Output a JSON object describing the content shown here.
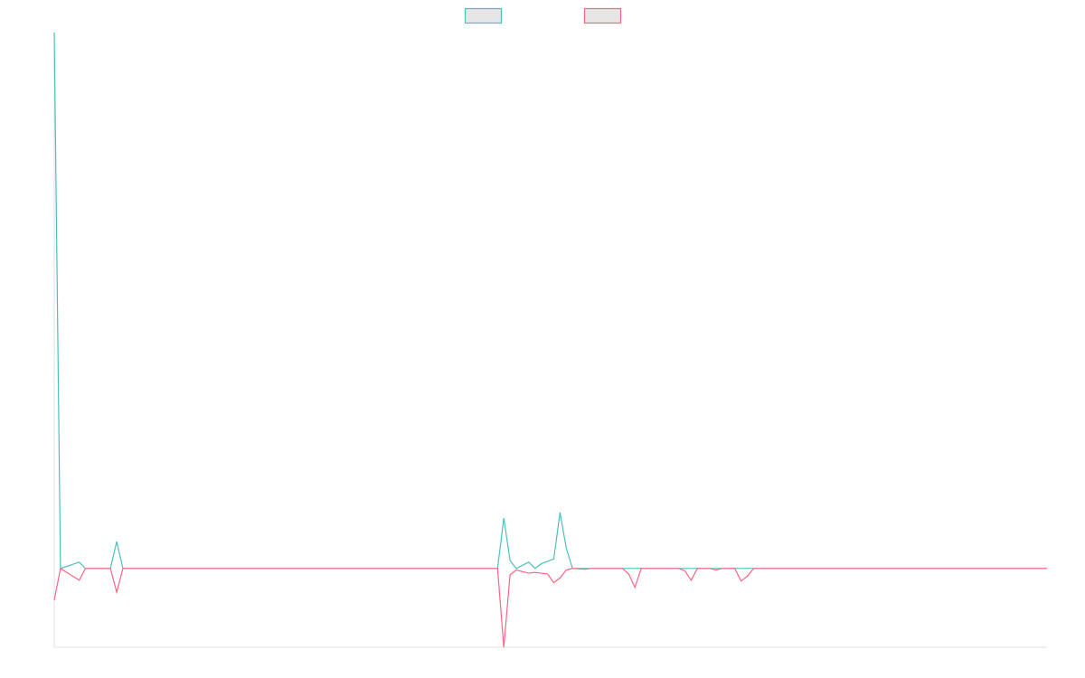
{
  "chart_data": {
    "type": "line",
    "title": "",
    "xlabel": "",
    "ylabel": "",
    "legend_position": "top-center",
    "grid": false,
    "ylim": [
      -10,
      68
    ],
    "n_points": 160,
    "series": [
      {
        "name": "",
        "color": "#4bc0c0",
        "fill": "#e6e6e6",
        "points": [
          [
            0,
            68
          ],
          [
            1,
            0
          ],
          [
            4,
            0.8
          ],
          [
            5,
            0
          ],
          [
            9,
            0
          ],
          [
            10,
            3.4
          ],
          [
            11,
            0
          ],
          [
            71,
            0
          ],
          [
            72,
            6.4
          ],
          [
            73,
            1
          ],
          [
            74,
            0
          ],
          [
            76,
            0.8
          ],
          [
            77,
            0
          ],
          [
            78,
            0.6
          ],
          [
            80,
            1.2
          ],
          [
            81,
            7.1
          ],
          [
            82,
            2.6
          ],
          [
            83,
            0
          ],
          [
            149,
            0
          ],
          [
            159,
            0
          ]
        ]
      },
      {
        "name": "",
        "color": "#ff6384",
        "fill": "#e6e6e6",
        "points": [
          [
            0,
            -4
          ],
          [
            1,
            0
          ],
          [
            4,
            -1.5
          ],
          [
            5,
            0
          ],
          [
            9,
            0
          ],
          [
            10,
            -3
          ],
          [
            11,
            0
          ],
          [
            71,
            0
          ],
          [
            72,
            -10
          ],
          [
            73,
            -0.8
          ],
          [
            74,
            -0.2
          ],
          [
            76,
            -0.6
          ],
          [
            77,
            -0.5
          ],
          [
            79,
            -0.7
          ],
          [
            80,
            -1.8
          ],
          [
            81,
            -1.2
          ],
          [
            82,
            -0.2
          ],
          [
            83,
            0
          ],
          [
            85,
            -0.1
          ],
          [
            86,
            0
          ],
          [
            91,
            0
          ],
          [
            92,
            -0.7
          ],
          [
            93,
            -2.4
          ],
          [
            94,
            0
          ],
          [
            100,
            0
          ],
          [
            101,
            -0.3
          ],
          [
            102,
            -1.5
          ],
          [
            103,
            0
          ],
          [
            105,
            0
          ],
          [
            106,
            -0.2
          ],
          [
            107,
            0
          ],
          [
            109,
            0
          ],
          [
            110,
            -1.6
          ],
          [
            111,
            -1
          ],
          [
            112,
            0
          ],
          [
            159,
            0
          ]
        ]
      }
    ]
  }
}
